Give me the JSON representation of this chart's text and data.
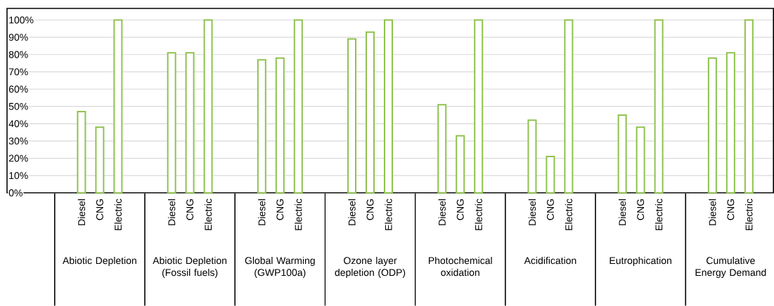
{
  "chart_data": {
    "type": "bar",
    "categories": [
      "Abiotic Depletion",
      "Abiotic Depletion (Fossil fuels)",
      "Global Warming (GWP100a)",
      "Ozone layer depletion (ODP)",
      "Photochemical oxidation",
      "Acidification",
      "Eutrophication",
      "Cumulative Energy Demand"
    ],
    "series": [
      {
        "name": "Diesel",
        "color": "#8fc24f",
        "values": [
          47,
          81,
          77,
          89,
          51,
          42,
          45,
          78
        ]
      },
      {
        "name": "CNG",
        "color": "#8fc24f",
        "values": [
          38,
          81,
          78,
          93,
          33,
          21,
          38,
          81
        ]
      },
      {
        "name": "Electric",
        "color": "#8fc24f",
        "values": [
          100,
          100,
          100,
          100,
          100,
          100,
          100,
          100
        ]
      }
    ],
    "ylim": [
      0,
      106.7
    ],
    "yticks": [
      {
        "value": 0,
        "label": "0%"
      },
      {
        "value": 10,
        "label": "10%"
      },
      {
        "value": 20,
        "label": "20%"
      },
      {
        "value": 30,
        "label": "30%"
      },
      {
        "value": 40,
        "label": "40%"
      },
      {
        "value": 50,
        "label": "50%"
      },
      {
        "value": 60,
        "label": "60%"
      },
      {
        "value": 70,
        "label": "70%"
      },
      {
        "value": 80,
        "label": "80%"
      },
      {
        "value": 90,
        "label": "90%"
      },
      {
        "value": 100,
        "label": "100%"
      }
    ],
    "grid": "y"
  }
}
